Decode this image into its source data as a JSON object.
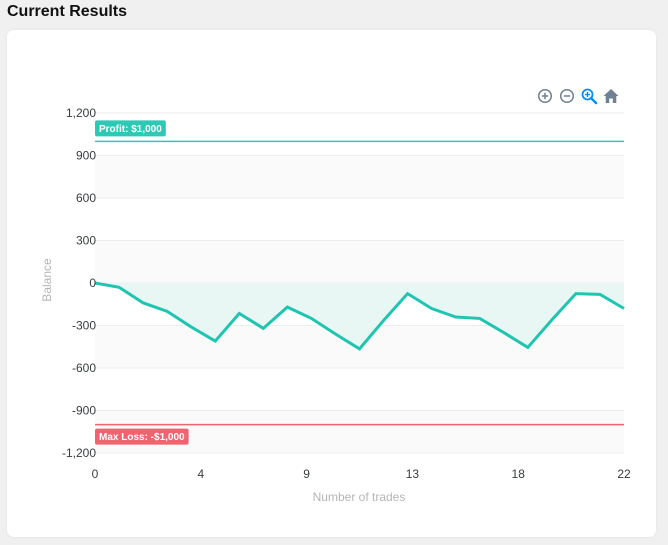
{
  "page": {
    "title": "Current Results"
  },
  "toolbar": {
    "zoom_in_icon": "zoom-in-icon",
    "zoom_out_icon": "zoom-out-icon",
    "selection_zoom_icon": "magnifier-zoom-icon",
    "reset_icon": "home-icon"
  },
  "chart_data": {
    "type": "area",
    "title": "",
    "xlabel": "Number of trades",
    "ylabel": "Balance",
    "xlim": [
      0,
      22
    ],
    "ylim": [
      -1200,
      1200
    ],
    "x_ticks": [
      "0",
      "4",
      "9",
      "13",
      "18",
      "22"
    ],
    "x_tick_values": [
      0,
      4.4,
      8.8,
      13.2,
      17.6,
      22
    ],
    "y_ticks": [
      "1,200",
      "900",
      "600",
      "300",
      "0",
      "-300",
      "-600",
      "-900",
      "-1,200"
    ],
    "y_tick_values": [
      1200,
      900,
      600,
      300,
      0,
      -300,
      -600,
      -900,
      -1200
    ],
    "grid": true,
    "series": [
      {
        "values": [
          [
            0,
            0
          ],
          [
            1,
            -30
          ],
          [
            2,
            -140
          ],
          [
            3,
            -200
          ],
          [
            4,
            -310
          ],
          [
            5,
            -410
          ],
          [
            6,
            -215
          ],
          [
            7,
            -320
          ],
          [
            8,
            -170
          ],
          [
            9,
            -250
          ],
          [
            10,
            -360
          ],
          [
            11,
            -465
          ],
          [
            12,
            -265
          ],
          [
            13,
            -75
          ],
          [
            14,
            -180
          ],
          [
            15,
            -240
          ],
          [
            16,
            -250
          ],
          [
            17,
            -350
          ],
          [
            18,
            -455
          ],
          [
            19,
            -260
          ],
          [
            20,
            -75
          ],
          [
            21,
            -80
          ],
          [
            22,
            -180
          ]
        ]
      }
    ],
    "annotations": [
      {
        "label": "Profit: $1,000",
        "y": 1000,
        "color": "#2ec9b4"
      },
      {
        "label": "Max Loss: -$1,000",
        "y": -1000,
        "color": "#f0636f"
      }
    ],
    "colors": {
      "line": "#1fc5b1",
      "fill": "#e9f7f4",
      "grid": "#ededed",
      "plot_band": "#fafafa",
      "profit": "#2ec9b4",
      "loss": "#f0636f"
    }
  }
}
